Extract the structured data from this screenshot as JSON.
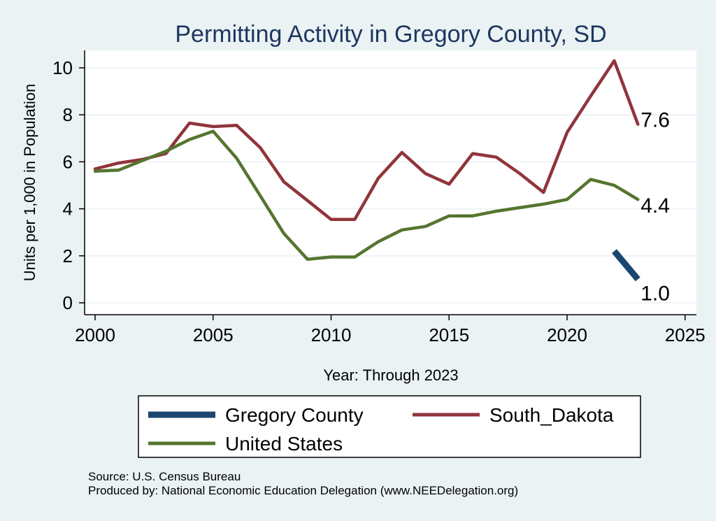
{
  "chart_data": {
    "type": "line",
    "title": "Permitting Activity in Gregory County, SD",
    "xlabel": "Year: Through 2023",
    "ylabel": "Units per 1,000 in Population",
    "xlim": [
      2000,
      2025
    ],
    "ylim": [
      0,
      10
    ],
    "x_ticks": [
      "2000",
      "2005",
      "2010",
      "2015",
      "2020",
      "2025"
    ],
    "y_ticks": [
      "0",
      "2",
      "4",
      "6",
      "8",
      "10"
    ],
    "grid": true,
    "legend_position": "bottom",
    "series": [
      {
        "name": "Gregory County",
        "color": "#1a476f",
        "x": [
          2022,
          2023
        ],
        "values": [
          2.2,
          1.0
        ],
        "end_label": "1.0"
      },
      {
        "name": "South_Dakota",
        "color": "#90353b",
        "x": [
          2000,
          2001,
          2002,
          2003,
          2004,
          2005,
          2006,
          2007,
          2008,
          2009,
          2010,
          2011,
          2012,
          2013,
          2014,
          2015,
          2016,
          2017,
          2018,
          2019,
          2020,
          2021,
          2022,
          2023
        ],
        "values": [
          5.7,
          5.95,
          6.1,
          6.35,
          7.65,
          7.5,
          7.55,
          6.6,
          5.15,
          4.35,
          3.55,
          3.55,
          5.3,
          6.4,
          5.5,
          5.05,
          6.35,
          6.2,
          5.5,
          4.7,
          7.25,
          8.8,
          10.3,
          7.6
        ],
        "end_label": "7.6"
      },
      {
        "name": "United States",
        "color": "#55752f",
        "x": [
          2000,
          2001,
          2002,
          2003,
          2004,
          2005,
          2006,
          2007,
          2008,
          2009,
          2010,
          2011,
          2012,
          2013,
          2014,
          2015,
          2016,
          2017,
          2018,
          2019,
          2020,
          2021,
          2022,
          2023
        ],
        "values": [
          5.6,
          5.65,
          6.05,
          6.45,
          6.95,
          7.3,
          6.15,
          4.55,
          2.95,
          1.85,
          1.95,
          1.95,
          2.6,
          3.1,
          3.25,
          3.7,
          3.7,
          3.9,
          4.05,
          4.2,
          4.4,
          5.25,
          5.0,
          4.4
        ],
        "end_label": "4.4"
      }
    ]
  },
  "footer": {
    "source": "Source: U.S. Census Bureau",
    "produced_by": "Produced by: National Economic Education Delegation (www.NEEDelegation.org)"
  },
  "colors": {
    "background": "#eaf2f3",
    "plot_background": "#ffffff",
    "grid": "#eaf2f3",
    "title": "#1e3660"
  }
}
